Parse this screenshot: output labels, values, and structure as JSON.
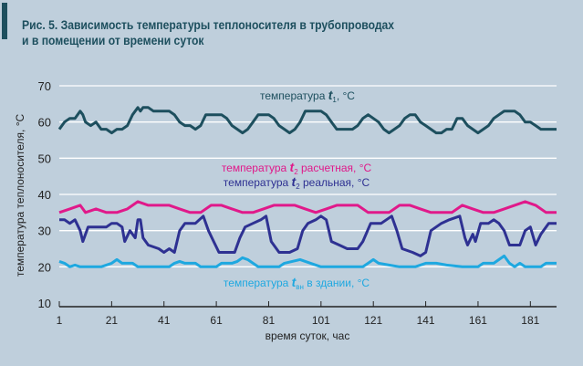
{
  "chart_data": {
    "type": "line",
    "title_line1": "Рис. 5. Зависимость температуры теплоносителя в трубопроводах",
    "title_line2": "и в помещении от времени суток",
    "xlabel": "время суток, час",
    "ylabel": "температура теплоносителя, °С",
    "xlim": [
      1,
      191
    ],
    "ylim": [
      10,
      70
    ],
    "xticks": [
      1,
      21,
      41,
      61,
      81,
      101,
      121,
      141,
      161,
      181
    ],
    "yticks": [
      10,
      20,
      30,
      40,
      50,
      60,
      70
    ],
    "grid": "horizontal",
    "series": [
      {
        "name": "температура t1, °С",
        "label_pre": "температура ",
        "label_var": "t",
        "label_sub": "1",
        "label_post": ", °С",
        "color": "#1d4f5e",
        "points": [
          [
            1,
            58
          ],
          [
            3,
            60
          ],
          [
            5,
            61
          ],
          [
            7,
            61
          ],
          [
            9,
            63
          ],
          [
            10,
            62
          ],
          [
            11,
            60
          ],
          [
            13,
            59
          ],
          [
            15,
            60
          ],
          [
            17,
            58
          ],
          [
            19,
            58
          ],
          [
            21,
            57
          ],
          [
            23,
            58
          ],
          [
            25,
            58
          ],
          [
            27,
            59
          ],
          [
            29,
            62
          ],
          [
            31,
            64
          ],
          [
            32,
            63
          ],
          [
            33,
            64
          ],
          [
            35,
            64
          ],
          [
            37,
            63
          ],
          [
            41,
            63
          ],
          [
            43,
            63
          ],
          [
            45,
            62
          ],
          [
            47,
            60
          ],
          [
            49,
            59
          ],
          [
            51,
            59
          ],
          [
            53,
            58
          ],
          [
            55,
            59
          ],
          [
            57,
            62
          ],
          [
            59,
            62
          ],
          [
            63,
            62
          ],
          [
            65,
            61
          ],
          [
            67,
            59
          ],
          [
            69,
            58
          ],
          [
            71,
            57
          ],
          [
            73,
            58
          ],
          [
            75,
            60
          ],
          [
            77,
            62
          ],
          [
            81,
            62
          ],
          [
            83,
            61
          ],
          [
            85,
            59
          ],
          [
            87,
            58
          ],
          [
            89,
            57
          ],
          [
            91,
            58
          ],
          [
            93,
            60
          ],
          [
            95,
            63
          ],
          [
            101,
            63
          ],
          [
            103,
            62
          ],
          [
            105,
            60
          ],
          [
            107,
            58
          ],
          [
            113,
            58
          ],
          [
            115,
            59
          ],
          [
            117,
            61
          ],
          [
            119,
            62
          ],
          [
            121,
            61
          ],
          [
            123,
            60
          ],
          [
            125,
            58
          ],
          [
            127,
            57
          ],
          [
            129,
            58
          ],
          [
            131,
            59
          ],
          [
            133,
            61
          ],
          [
            135,
            62
          ],
          [
            137,
            62
          ],
          [
            139,
            60
          ],
          [
            141,
            59
          ],
          [
            143,
            58
          ],
          [
            145,
            57
          ],
          [
            147,
            57
          ],
          [
            149,
            58
          ],
          [
            151,
            58
          ],
          [
            153,
            61
          ],
          [
            155,
            61
          ],
          [
            157,
            59
          ],
          [
            159,
            58
          ],
          [
            161,
            57
          ],
          [
            163,
            58
          ],
          [
            165,
            59
          ],
          [
            167,
            61
          ],
          [
            169,
            62
          ],
          [
            171,
            63
          ],
          [
            175,
            63
          ],
          [
            177,
            62
          ],
          [
            179,
            60
          ],
          [
            181,
            60
          ],
          [
            183,
            59
          ],
          [
            185,
            58
          ],
          [
            191,
            58
          ]
        ]
      },
      {
        "name": "температура t2 расчетная, °С",
        "label_pre": "температура ",
        "label_var": "t",
        "label_sub": "2",
        "label_post": " расчетная, °С",
        "color": "#e0198a",
        "points": [
          [
            1,
            35
          ],
          [
            5,
            36
          ],
          [
            9,
            37
          ],
          [
            11,
            35
          ],
          [
            15,
            36
          ],
          [
            19,
            35
          ],
          [
            23,
            35
          ],
          [
            27,
            36
          ],
          [
            31,
            38
          ],
          [
            35,
            37
          ],
          [
            43,
            37
          ],
          [
            47,
            36
          ],
          [
            51,
            35
          ],
          [
            55,
            35
          ],
          [
            59,
            37
          ],
          [
            63,
            37
          ],
          [
            67,
            36
          ],
          [
            71,
            35
          ],
          [
            75,
            35
          ],
          [
            79,
            36
          ],
          [
            83,
            37
          ],
          [
            91,
            37
          ],
          [
            95,
            36
          ],
          [
            99,
            35
          ],
          [
            103,
            36
          ],
          [
            107,
            37
          ],
          [
            115,
            37
          ],
          [
            119,
            35
          ],
          [
            127,
            35
          ],
          [
            131,
            37
          ],
          [
            135,
            37
          ],
          [
            139,
            36
          ],
          [
            143,
            35
          ],
          [
            151,
            35
          ],
          [
            155,
            37
          ],
          [
            159,
            36
          ],
          [
            163,
            35
          ],
          [
            167,
            35
          ],
          [
            171,
            36
          ],
          [
            175,
            37
          ],
          [
            179,
            38
          ],
          [
            183,
            37
          ],
          [
            187,
            35
          ],
          [
            191,
            35
          ]
        ]
      },
      {
        "name": "температура t2 реальная, °С",
        "label_pre": "температура ",
        "label_var": "t",
        "label_sub": "2",
        "label_post": " реальная, °С",
        "color": "#2e3192",
        "points": [
          [
            1,
            33
          ],
          [
            3,
            33
          ],
          [
            5,
            32
          ],
          [
            7,
            33
          ],
          [
            9,
            30
          ],
          [
            10,
            27
          ],
          [
            12,
            31
          ],
          [
            19,
            31
          ],
          [
            21,
            32
          ],
          [
            23,
            32
          ],
          [
            25,
            31
          ],
          [
            26,
            27
          ],
          [
            28,
            30
          ],
          [
            30,
            28
          ],
          [
            31,
            33
          ],
          [
            32,
            33
          ],
          [
            33,
            28
          ],
          [
            35,
            26
          ],
          [
            39,
            25
          ],
          [
            41,
            24
          ],
          [
            43,
            25
          ],
          [
            45,
            24
          ],
          [
            47,
            30
          ],
          [
            49,
            32
          ],
          [
            53,
            32
          ],
          [
            56,
            34
          ],
          [
            58,
            30
          ],
          [
            60,
            27
          ],
          [
            62,
            24
          ],
          [
            68,
            24
          ],
          [
            70,
            28
          ],
          [
            72,
            31
          ],
          [
            75,
            32
          ],
          [
            78,
            33
          ],
          [
            80,
            34
          ],
          [
            82,
            27
          ],
          [
            85,
            24
          ],
          [
            89,
            24
          ],
          [
            92,
            25
          ],
          [
            94,
            30
          ],
          [
            96,
            32
          ],
          [
            99,
            33
          ],
          [
            101,
            34
          ],
          [
            103,
            33
          ],
          [
            105,
            27
          ],
          [
            108,
            26
          ],
          [
            111,
            25
          ],
          [
            115,
            25
          ],
          [
            117,
            27
          ],
          [
            120,
            32
          ],
          [
            124,
            32
          ],
          [
            128,
            34
          ],
          [
            130,
            30
          ],
          [
            132,
            25
          ],
          [
            136,
            24
          ],
          [
            139,
            23
          ],
          [
            141,
            24
          ],
          [
            143,
            30
          ],
          [
            147,
            32
          ],
          [
            150,
            33
          ],
          [
            154,
            34
          ],
          [
            156,
            28
          ],
          [
            157,
            26
          ],
          [
            159,
            29
          ],
          [
            160,
            27
          ],
          [
            162,
            32
          ],
          [
            165,
            32
          ],
          [
            167,
            33
          ],
          [
            169,
            32
          ],
          [
            171,
            30
          ],
          [
            173,
            26
          ],
          [
            177,
            26
          ],
          [
            179,
            30
          ],
          [
            181,
            31
          ],
          [
            183,
            26
          ],
          [
            185,
            29
          ],
          [
            188,
            32
          ],
          [
            191,
            32
          ]
        ]
      },
      {
        "name": "температура tвн в здании, °С",
        "label_pre": "температура ",
        "label_var": "t",
        "label_sub": "вн",
        "label_post": " в здании, °С",
        "color": "#1ea8e0",
        "points": [
          [
            1,
            21.5
          ],
          [
            3,
            21
          ],
          [
            5,
            20
          ],
          [
            7,
            20.5
          ],
          [
            9,
            20
          ],
          [
            17,
            20
          ],
          [
            21,
            21
          ],
          [
            23,
            22
          ],
          [
            25,
            21
          ],
          [
            29,
            21
          ],
          [
            31,
            20
          ],
          [
            43,
            20
          ],
          [
            45,
            21
          ],
          [
            47,
            21.5
          ],
          [
            49,
            21
          ],
          [
            53,
            21
          ],
          [
            55,
            20
          ],
          [
            61,
            20
          ],
          [
            63,
            21
          ],
          [
            67,
            21
          ],
          [
            69,
            21.5
          ],
          [
            71,
            22.5
          ],
          [
            73,
            22
          ],
          [
            75,
            21
          ],
          [
            77,
            20
          ],
          [
            85,
            20
          ],
          [
            87,
            21
          ],
          [
            93,
            22
          ],
          [
            97,
            21
          ],
          [
            101,
            20
          ],
          [
            117,
            20
          ],
          [
            119,
            21
          ],
          [
            121,
            22
          ],
          [
            123,
            21
          ],
          [
            127,
            20.5
          ],
          [
            131,
            20
          ],
          [
            137,
            20
          ],
          [
            141,
            21
          ],
          [
            145,
            21
          ],
          [
            149,
            20.5
          ],
          [
            155,
            20
          ],
          [
            161,
            20
          ],
          [
            163,
            21
          ],
          [
            167,
            21
          ],
          [
            169,
            22
          ],
          [
            171,
            23
          ],
          [
            173,
            21
          ],
          [
            175,
            20
          ],
          [
            177,
            21
          ],
          [
            179,
            20
          ],
          [
            185,
            20
          ],
          [
            187,
            21
          ],
          [
            191,
            21
          ]
        ]
      }
    ]
  }
}
